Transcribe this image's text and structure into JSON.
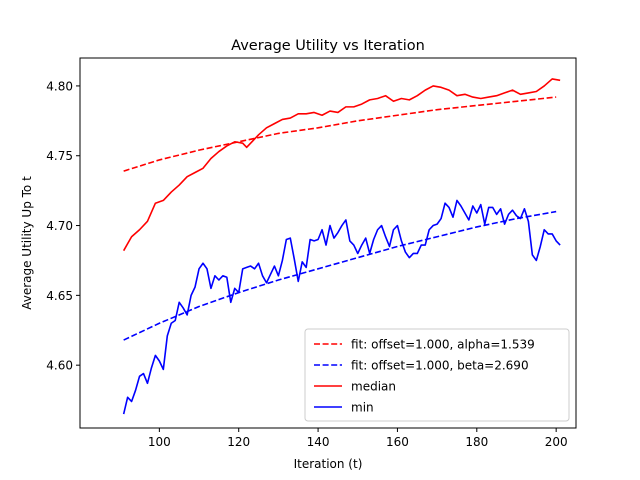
{
  "chart_data": {
    "type": "line",
    "title": "Average Utility vs Iteration",
    "xlabel": "Iteration (t)",
    "ylabel": "Average Utility Up To t",
    "xlim": [
      80,
      205
    ],
    "ylim": [
      4.555,
      4.82
    ],
    "xticks": [
      100,
      120,
      140,
      160,
      180,
      200
    ],
    "yticks": [
      4.6,
      4.65,
      4.7,
      4.75,
      4.8
    ],
    "xtick_labels": [
      "100",
      "120",
      "140",
      "160",
      "180",
      "200"
    ],
    "ytick_labels": [
      "4.60",
      "4.65",
      "4.70",
      "4.75",
      "4.80"
    ],
    "grid": false,
    "legend_position": "lower-right",
    "series": [
      {
        "name": "fit: offset=1.000, alpha=1.539",
        "color": "#ff0000",
        "style": "dashed",
        "x": [
          91,
          100,
          110,
          120,
          130,
          140,
          150,
          160,
          170,
          180,
          190,
          200
        ],
        "values": [
          4.739,
          4.747,
          4.754,
          4.76,
          4.766,
          4.77,
          4.775,
          4.779,
          4.783,
          4.786,
          4.789,
          4.792
        ]
      },
      {
        "name": "fit: offset=1.000, beta=2.690",
        "color": "#0000ff",
        "style": "dashed",
        "x": [
          91,
          100,
          110,
          120,
          130,
          140,
          150,
          160,
          170,
          180,
          190,
          200
        ],
        "values": [
          4.618,
          4.63,
          4.642,
          4.652,
          4.661,
          4.669,
          4.677,
          4.685,
          4.692,
          4.699,
          4.705,
          4.71
        ]
      },
      {
        "name": "median",
        "color": "#ff0000",
        "style": "solid",
        "x": [
          91,
          93,
          95,
          97,
          99,
          101,
          103,
          105,
          107,
          109,
          111,
          113,
          115,
          117,
          119,
          121,
          122,
          123,
          125,
          127,
          129,
          131,
          133,
          135,
          137,
          139,
          141,
          143,
          145,
          147,
          149,
          151,
          153,
          155,
          157,
          159,
          161,
          163,
          165,
          167,
          169,
          171,
          173,
          175,
          177,
          179,
          181,
          183,
          185,
          187,
          189,
          191,
          193,
          195,
          197,
          199,
          201
        ],
        "values": [
          4.682,
          4.692,
          4.697,
          4.703,
          4.716,
          4.718,
          4.724,
          4.729,
          4.735,
          4.738,
          4.741,
          4.748,
          4.753,
          4.757,
          4.76,
          4.759,
          4.756,
          4.759,
          4.765,
          4.77,
          4.773,
          4.776,
          4.777,
          4.78,
          4.78,
          4.781,
          4.779,
          4.782,
          4.781,
          4.785,
          4.785,
          4.787,
          4.79,
          4.791,
          4.793,
          4.789,
          4.791,
          4.79,
          4.793,
          4.797,
          4.8,
          4.799,
          4.797,
          4.793,
          4.794,
          4.792,
          4.791,
          4.792,
          4.793,
          4.795,
          4.797,
          4.794,
          4.795,
          4.796,
          4.8,
          4.805,
          4.804
        ]
      },
      {
        "name": "min",
        "color": "#0000ff",
        "style": "solid",
        "x": [
          91,
          92,
          93,
          94,
          95,
          96,
          97,
          98,
          99,
          100,
          101,
          102,
          103,
          104,
          105,
          106,
          107,
          108,
          109,
          110,
          111,
          112,
          113,
          114,
          115,
          116,
          117,
          118,
          119,
          120,
          121,
          122,
          123,
          124,
          125,
          126,
          127,
          128,
          129,
          130,
          131,
          132,
          133,
          134,
          135,
          136,
          137,
          138,
          139,
          140,
          141,
          142,
          143,
          144,
          145,
          146,
          147,
          148,
          149,
          150,
          151,
          152,
          153,
          154,
          155,
          156,
          157,
          158,
          159,
          160,
          161,
          162,
          163,
          164,
          165,
          166,
          167,
          168,
          169,
          170,
          171,
          172,
          173,
          174,
          175,
          176,
          177,
          178,
          179,
          180,
          181,
          182,
          183,
          184,
          185,
          186,
          187,
          188,
          189,
          190,
          191,
          192,
          193,
          194,
          195,
          196,
          197,
          198,
          199,
          200,
          201
        ],
        "values": [
          4.565,
          4.577,
          4.574,
          4.582,
          4.592,
          4.594,
          4.587,
          4.598,
          4.607,
          4.603,
          4.597,
          4.621,
          4.63,
          4.632,
          4.645,
          4.641,
          4.636,
          4.65,
          4.656,
          4.669,
          4.673,
          4.669,
          4.655,
          4.664,
          4.661,
          4.664,
          4.663,
          4.645,
          4.655,
          4.652,
          4.669,
          4.67,
          4.671,
          4.669,
          4.673,
          4.664,
          4.659,
          4.665,
          4.671,
          4.664,
          4.675,
          4.69,
          4.691,
          4.676,
          4.66,
          4.674,
          4.67,
          4.69,
          4.689,
          4.69,
          4.697,
          4.686,
          4.7,
          4.691,
          4.695,
          4.7,
          4.704,
          4.689,
          4.686,
          4.68,
          4.686,
          4.691,
          4.68,
          4.69,
          4.697,
          4.7,
          4.692,
          4.685,
          4.697,
          4.7,
          4.689,
          4.681,
          4.677,
          4.68,
          4.68,
          4.686,
          4.686,
          4.697,
          4.7,
          4.701,
          4.705,
          4.716,
          4.713,
          4.706,
          4.718,
          4.714,
          4.709,
          4.704,
          4.714,
          4.709,
          4.715,
          4.701,
          4.713,
          4.713,
          4.708,
          4.712,
          4.701,
          4.708,
          4.711,
          4.707,
          4.705,
          4.712,
          4.703,
          4.679,
          4.675,
          4.685,
          4.697,
          4.694,
          4.694,
          4.689,
          4.686
        ]
      }
    ]
  }
}
